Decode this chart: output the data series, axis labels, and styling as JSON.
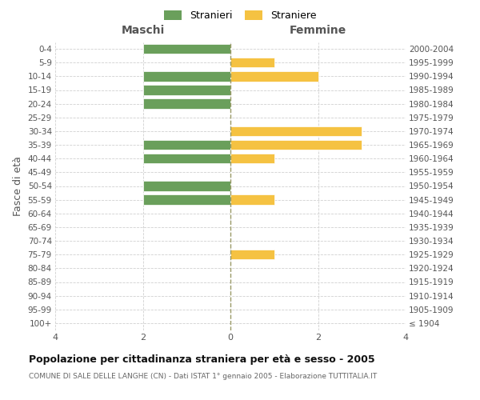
{
  "age_groups": [
    "100+",
    "95-99",
    "90-94",
    "85-89",
    "80-84",
    "75-79",
    "70-74",
    "65-69",
    "60-64",
    "55-59",
    "50-54",
    "45-49",
    "40-44",
    "35-39",
    "30-34",
    "25-29",
    "20-24",
    "15-19",
    "10-14",
    "5-9",
    "0-4"
  ],
  "birth_years": [
    "≤ 1904",
    "1905-1909",
    "1910-1914",
    "1915-1919",
    "1920-1924",
    "1925-1929",
    "1930-1934",
    "1935-1939",
    "1940-1944",
    "1945-1949",
    "1950-1954",
    "1955-1959",
    "1960-1964",
    "1965-1969",
    "1970-1974",
    "1975-1979",
    "1980-1984",
    "1985-1989",
    "1990-1994",
    "1995-1999",
    "2000-2004"
  ],
  "maschi": [
    0,
    0,
    0,
    0,
    0,
    0,
    0,
    0,
    0,
    2,
    2,
    0,
    2,
    2,
    0,
    0,
    2,
    2,
    2,
    0,
    2
  ],
  "femmine": [
    0,
    0,
    0,
    0,
    0,
    1,
    0,
    0,
    0,
    1,
    0,
    0,
    1,
    3,
    3,
    0,
    0,
    0,
    2,
    1,
    0
  ],
  "color_maschi": "#6a9f5b",
  "color_femmine": "#f5c242",
  "title": "Popolazione per cittadinanza straniera per età e sesso - 2005",
  "subtitle": "COMUNE DI SALE DELLE LANGHE (CN) - Dati ISTAT 1° gennaio 2005 - Elaborazione TUTTITALIA.IT",
  "xlabel_left": "Maschi",
  "xlabel_right": "Femmine",
  "ylabel_left": "Fasce di età",
  "legend_maschi": "Stranieri",
  "legend_femmine": "Straniere",
  "xlim": 4,
  "background_color": "#ffffff",
  "grid_color": "#d0d0d0",
  "dashed_line_color": "#999966"
}
